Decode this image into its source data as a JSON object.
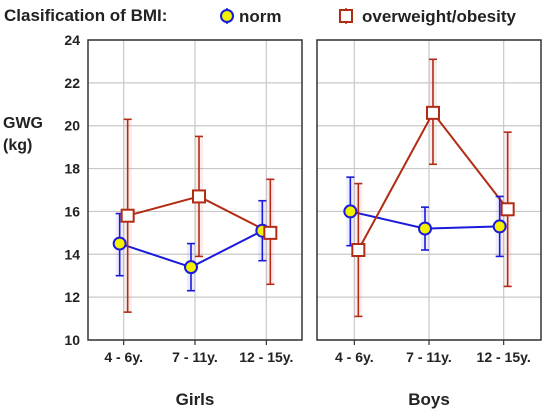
{
  "chart_data": {
    "type": "line",
    "legend": {
      "title": "Clasification of BMI:",
      "placement": "top",
      "entries": [
        "norm",
        "overweight/obesity"
      ]
    },
    "ylabel_lines": [
      "GWG",
      "(kg)"
    ],
    "ylim": [
      10,
      24
    ],
    "yticks": [
      "10",
      "12",
      "14",
      "16",
      "18",
      "20",
      "22",
      "24"
    ],
    "grid": true,
    "panels": [
      {
        "name": "Girls",
        "categories": [
          "4 - 6y.",
          "7 - 11y.",
          "12 - 15y."
        ],
        "series": [
          {
            "name": "norm",
            "color": "#1a1adc",
            "marker": "circle",
            "fill": "#f2f200",
            "values": [
              14.5,
              13.4,
              15.1
            ],
            "lower": [
              13.0,
              12.3,
              13.7
            ],
            "upper": [
              15.9,
              14.5,
              16.5
            ]
          },
          {
            "name": "overweight/obesity",
            "color": "#b22b14",
            "marker": "square",
            "fill": "#ffffff",
            "values": [
              15.8,
              16.7,
              15.0
            ],
            "lower": [
              11.3,
              13.9,
              12.6
            ],
            "upper": [
              20.3,
              19.5,
              17.5
            ]
          }
        ]
      },
      {
        "name": "Boys",
        "categories": [
          "4 - 6y.",
          "7 - 11y.",
          "12 - 15y."
        ],
        "series": [
          {
            "name": "norm",
            "color": "#1a1adc",
            "marker": "circle",
            "fill": "#f2f200",
            "values": [
              16.0,
              15.2,
              15.3
            ],
            "lower": [
              14.4,
              14.2,
              13.9
            ],
            "upper": [
              17.6,
              16.2,
              16.7
            ]
          },
          {
            "name": "overweight/obesity",
            "color": "#b22b14",
            "marker": "square",
            "fill": "#ffffff",
            "values": [
              14.2,
              20.6,
              16.1
            ],
            "lower": [
              11.1,
              18.2,
              12.5
            ],
            "upper": [
              17.3,
              23.1,
              19.7
            ]
          }
        ]
      }
    ]
  }
}
